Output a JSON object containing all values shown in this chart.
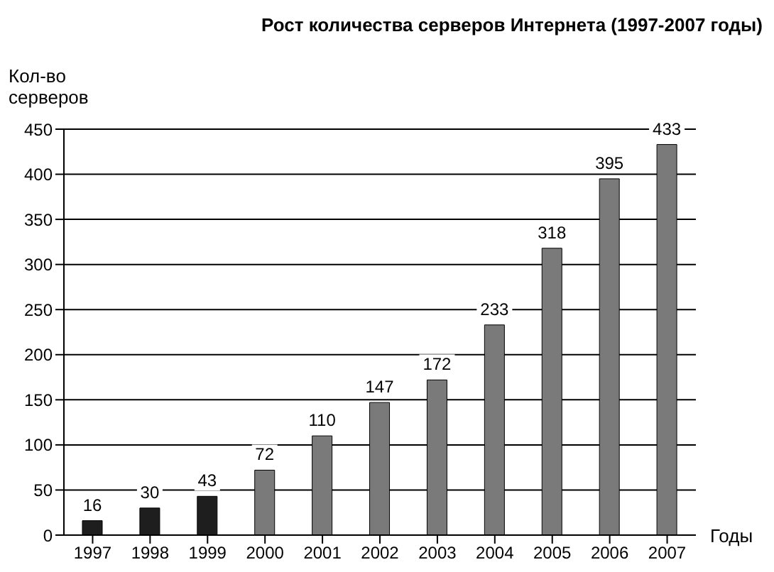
{
  "chart_data": {
    "type": "bar",
    "title": "Рост количества серверов Интернета (1997-2007 годы)",
    "ylabel": "Кол-во серверов",
    "xlabel": "Годы",
    "categories": [
      "1997",
      "1998",
      "1999",
      "2000",
      "2001",
      "2002",
      "2003",
      "2004",
      "2005",
      "2006",
      "2007"
    ],
    "values": [
      16,
      30,
      43,
      72,
      110,
      147,
      172,
      233,
      318,
      395,
      433
    ],
    "colors": [
      "#1e1e1e",
      "#1e1e1e",
      "#1e1e1e",
      "#7a7a7a",
      "#7a7a7a",
      "#7a7a7a",
      "#7a7a7a",
      "#7a7a7a",
      "#7a7a7a",
      "#7a7a7a",
      "#7a7a7a"
    ],
    "ylim": [
      0,
      450
    ],
    "yticks": [
      0,
      50,
      100,
      150,
      200,
      250,
      300,
      350,
      400,
      450
    ],
    "grid": "y",
    "data_labels": true
  }
}
